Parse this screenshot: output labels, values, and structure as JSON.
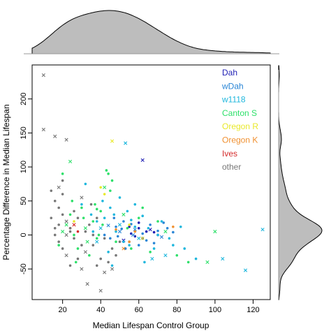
{
  "chart_data": {
    "type": "scatter",
    "xlabel": "Median Lifespan Control Group",
    "ylabel": "Percentage Difference in Median Lifespan",
    "xlim": [
      4,
      129
    ],
    "ylim": [
      -95,
      250
    ],
    "x_ticks": [
      20,
      40,
      60,
      80,
      100,
      120
    ],
    "y_ticks": [
      -50,
      0,
      50,
      100,
      150,
      200
    ],
    "grid": false,
    "legend_position": "top-right",
    "marginal_top": "density of Median Lifespan Control Group",
    "marginal_right": "density of Percentage Difference in Median Lifespan",
    "series": [
      {
        "name": "Dah",
        "color": "#1f1fb4",
        "points": [
          [
            62,
            110
          ],
          [
            56,
            2
          ],
          [
            60,
            10
          ],
          [
            64,
            5
          ],
          [
            58,
            -2
          ],
          [
            66,
            8
          ],
          [
            70,
            0
          ],
          [
            62,
            -5
          ],
          [
            55,
            12
          ],
          [
            68,
            4
          ],
          [
            52,
            -8
          ],
          [
            60,
            18
          ]
        ]
      },
      {
        "name": "wDah",
        "color": "#2b86d6",
        "points": [
          [
            50,
            5
          ],
          [
            48,
            12
          ],
          [
            45,
            -5
          ],
          [
            52,
            20
          ],
          [
            55,
            -10
          ],
          [
            58,
            8
          ],
          [
            62,
            2
          ],
          [
            64,
            -8
          ],
          [
            66,
            15
          ],
          [
            70,
            6
          ],
          [
            72,
            -3
          ],
          [
            75,
            10
          ],
          [
            42,
            0
          ],
          [
            47,
            25
          ],
          [
            53,
            -20
          ],
          [
            57,
            0
          ],
          [
            60,
            -15
          ],
          [
            68,
            -12
          ],
          [
            73,
            18
          ],
          [
            78,
            4
          ],
          [
            44,
            14
          ],
          [
            49,
            -2
          ],
          [
            51,
            9
          ],
          [
            56,
            16
          ]
        ]
      },
      {
        "name": "w1118",
        "color": "#1fb7dd",
        "points": [
          [
            53,
            135
          ],
          [
            32,
            75
          ],
          [
            30,
            45
          ],
          [
            35,
            30
          ],
          [
            38,
            20
          ],
          [
            40,
            10
          ],
          [
            42,
            25
          ],
          [
            45,
            40
          ],
          [
            47,
            30
          ],
          [
            48,
            5
          ],
          [
            50,
            15
          ],
          [
            52,
            -10
          ],
          [
            54,
            35
          ],
          [
            56,
            22
          ],
          [
            58,
            12
          ],
          [
            60,
            -5
          ],
          [
            62,
            28
          ],
          [
            65,
            10
          ],
          [
            68,
            -20
          ],
          [
            70,
            0
          ],
          [
            74,
            -30
          ],
          [
            78,
            -15
          ],
          [
            82,
            12
          ],
          [
            90,
            -35
          ],
          [
            104,
            -35
          ],
          [
            116,
            -52
          ],
          [
            125,
            8
          ],
          [
            72,
            20
          ],
          [
            76,
            -5
          ],
          [
            84,
            -20
          ],
          [
            38,
            -10
          ],
          [
            44,
            -25
          ],
          [
            46,
            -45
          ],
          [
            55,
            -15
          ],
          [
            63,
            -40
          ],
          [
            67,
            -35
          ],
          [
            58,
            45
          ],
          [
            50,
            55
          ],
          [
            36,
            5
          ],
          [
            41,
            50
          ]
        ]
      },
      {
        "name": "Canton S",
        "color": "#2ee06a",
        "points": [
          [
            22,
            15
          ],
          [
            24,
            30
          ],
          [
            26,
            0
          ],
          [
            28,
            -20
          ],
          [
            30,
            40
          ],
          [
            32,
            10
          ],
          [
            34,
            -30
          ],
          [
            36,
            20
          ],
          [
            38,
            -5
          ],
          [
            40,
            35
          ],
          [
            42,
            70
          ],
          [
            43,
            95
          ],
          [
            45,
            65
          ],
          [
            44,
            90
          ],
          [
            46,
            80
          ],
          [
            20,
            5
          ],
          [
            18,
            -15
          ],
          [
            25,
            50
          ],
          [
            27,
            -40
          ],
          [
            31,
            25
          ],
          [
            33,
            -10
          ],
          [
            37,
            45
          ],
          [
            39,
            0
          ],
          [
            41,
            15
          ],
          [
            48,
            -10
          ],
          [
            52,
            30
          ],
          [
            56,
            -20
          ],
          [
            62,
            40
          ],
          [
            66,
            -25
          ],
          [
            70,
            20
          ],
          [
            74,
            5
          ],
          [
            80,
            -30
          ],
          [
            86,
            -40
          ],
          [
            96,
            -40
          ],
          [
            100,
            5
          ],
          [
            24,
            108
          ],
          [
            20,
            90
          ],
          [
            38,
            38
          ],
          [
            54,
            10
          ],
          [
            60,
            25
          ]
        ]
      },
      {
        "name": "Oregon R",
        "color": "#e9e92a",
        "points": [
          [
            46,
            138
          ],
          [
            40,
            70
          ],
          [
            42,
            60
          ],
          [
            26,
            20
          ],
          [
            55,
            15
          ],
          [
            62,
            -5
          ]
        ]
      },
      {
        "name": "Oregon K",
        "color": "#f09030",
        "points": [
          [
            52,
            -20
          ],
          [
            55,
            -10
          ],
          [
            48,
            8
          ],
          [
            58,
            5
          ],
          [
            78,
            12
          ]
        ]
      },
      {
        "name": "Ives",
        "color": "#d42a2a",
        "points": [
          [
            26,
            15
          ],
          [
            28,
            5
          ],
          [
            24,
            10
          ]
        ]
      },
      {
        "name": "other",
        "color": "#777777",
        "points": [
          [
            10,
            235
          ],
          [
            10,
            155
          ],
          [
            16,
            145
          ],
          [
            22,
            140
          ],
          [
            14,
            65
          ],
          [
            18,
            70
          ],
          [
            20,
            60
          ],
          [
            16,
            50
          ],
          [
            18,
            40
          ],
          [
            20,
            30
          ],
          [
            22,
            20
          ],
          [
            24,
            10
          ],
          [
            16,
            0
          ],
          [
            18,
            -10
          ],
          [
            20,
            -20
          ],
          [
            22,
            -30
          ],
          [
            24,
            5
          ],
          [
            26,
            -5
          ],
          [
            28,
            25
          ],
          [
            30,
            -15
          ],
          [
            32,
            -25
          ],
          [
            34,
            15
          ],
          [
            36,
            0
          ],
          [
            38,
            -45
          ],
          [
            40,
            -35
          ],
          [
            42,
            -55
          ],
          [
            44,
            -40
          ],
          [
            46,
            -20
          ],
          [
            48,
            -30
          ],
          [
            50,
            -10
          ],
          [
            33,
            -72
          ],
          [
            40,
            -82
          ],
          [
            20,
            80
          ],
          [
            18,
            15
          ],
          [
            26,
            35
          ],
          [
            30,
            55
          ],
          [
            35,
            45
          ],
          [
            38,
            25
          ],
          [
            14,
            25
          ],
          [
            16,
            10
          ],
          [
            22,
            0
          ],
          [
            28,
            -35
          ],
          [
            32,
            5
          ],
          [
            36,
            -15
          ],
          [
            42,
            -5
          ],
          [
            30,
            -50
          ],
          [
            24,
            -45
          ],
          [
            46,
            -50
          ]
        ]
      }
    ]
  }
}
